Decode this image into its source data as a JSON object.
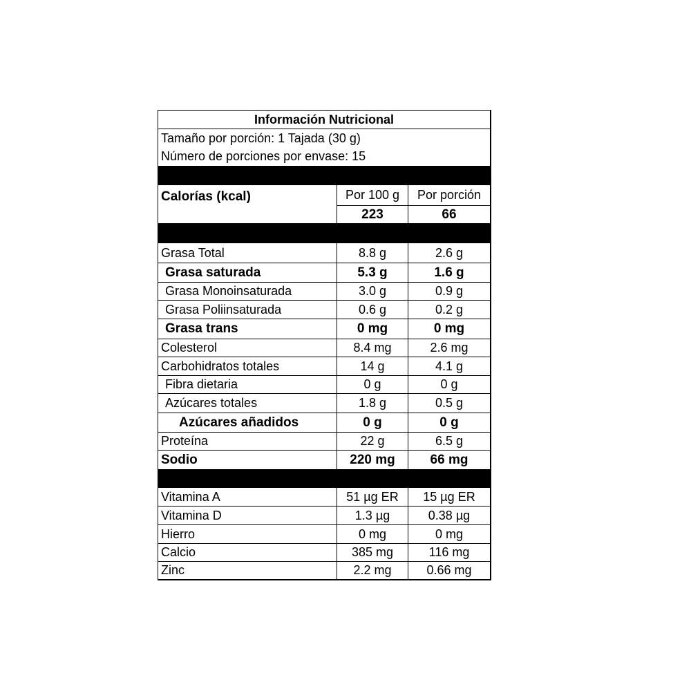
{
  "title": "Información Nutricional",
  "serving_size": "Tamaño por porción: 1 Tajada (30 g)",
  "servings_per_container": "Número de porciones por envase: 15",
  "calories": {
    "label": "Calorías (kcal)",
    "col1_header": "Por 100 g",
    "col2_header": "Por porción",
    "per_100g": "223",
    "per_serving": "66"
  },
  "nutrients": [
    {
      "name": "Grasa Total",
      "per_100g": "8.8 g",
      "per_serving": "2.6 g"
    },
    {
      "name": "Grasa saturada",
      "per_100g": "5.3 g",
      "per_serving": "1.6 g"
    },
    {
      "name": "Grasa Monoinsaturada",
      "per_100g": "3.0 g",
      "per_serving": "0.9 g"
    },
    {
      "name": "Grasa Poliinsaturada",
      "per_100g": "0.6 g",
      "per_serving": "0.2 g"
    },
    {
      "name": "Grasa trans",
      "per_100g": "0 mg",
      "per_serving": "0 mg"
    },
    {
      "name": "Colesterol",
      "per_100g": "8.4 mg",
      "per_serving": "2.6 mg"
    },
    {
      "name": "Carbohidratos totales",
      "per_100g": "14 g",
      "per_serving": "4.1 g"
    },
    {
      "name": "Fibra dietaria",
      "per_100g": "0 g",
      "per_serving": "0 g"
    },
    {
      "name": "Azúcares totales",
      "per_100g": "1.8 g",
      "per_serving": "0.5 g"
    },
    {
      "name": "Azúcares añadidos",
      "per_100g": "0 g",
      "per_serving": "0 g"
    },
    {
      "name": "Proteína",
      "per_100g": "22 g",
      "per_serving": "6.5 g"
    },
    {
      "name": "Sodio",
      "per_100g": "220 mg",
      "per_serving": "66 mg"
    }
  ],
  "micronutrients": [
    {
      "name": "Vitamina A",
      "per_100g": "51 µg ER",
      "per_serving": "15 µg ER"
    },
    {
      "name": "Vitamina D",
      "per_100g": "1.3 µg",
      "per_serving": "0.38 µg"
    },
    {
      "name": "Hierro",
      "per_100g": "0 mg",
      "per_serving": "0 mg"
    },
    {
      "name": "Calcio",
      "per_100g": "385 mg",
      "per_serving": "116 mg"
    },
    {
      "name": "Zinc",
      "per_100g": "2.2 mg",
      "per_serving": "0.66 mg"
    }
  ]
}
